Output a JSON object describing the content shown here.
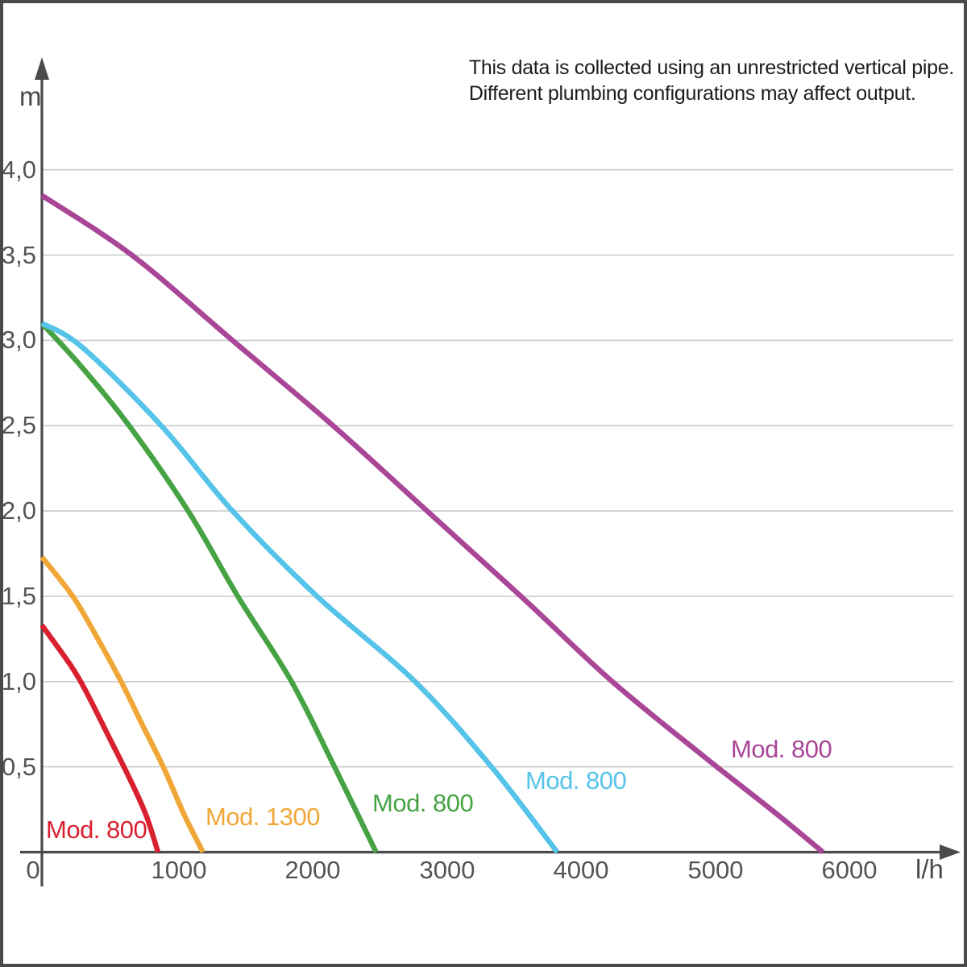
{
  "chart_data": {
    "type": "line",
    "title": "",
    "xlabel": "l/h",
    "ylabel": "m",
    "xlim": [
      0,
      6800
    ],
    "ylim": [
      0,
      4.6
    ],
    "grid": "horizontal",
    "legend": "inline-labels",
    "annotations": [
      "This data is collected using an unrestricted vertical pipe.",
      "Different plumbing configurations may affect output."
    ],
    "x_ticks": [
      {
        "value": 0,
        "label": "0"
      },
      {
        "value": 1000,
        "label": "1000"
      },
      {
        "value": 2000,
        "label": "2000"
      },
      {
        "value": 3000,
        "label": "3000"
      },
      {
        "value": 4000,
        "label": "4000"
      },
      {
        "value": 5000,
        "label": "5000"
      },
      {
        "value": 6000,
        "label": "6000"
      }
    ],
    "y_ticks": [
      {
        "value": 0.5,
        "label": "0,5"
      },
      {
        "value": 1.0,
        "label": "1,0"
      },
      {
        "value": 1.5,
        "label": "1,5"
      },
      {
        "value": 2.0,
        "label": "2,0"
      },
      {
        "value": 2.5,
        "label": "2,5"
      },
      {
        "value": 3.0,
        "label": "3,0"
      },
      {
        "value": 3.5,
        "label": "3,5"
      },
      {
        "value": 4.0,
        "label": "4,0"
      }
    ],
    "style": {
      "axis_color": "#4b4b4d",
      "grid_color": "#c9cacb",
      "tick_color": "#535456",
      "note_color": "#1d1d1f",
      "border_color": "#4a4a4c",
      "background": "#ffffff"
    },
    "series": [
      {
        "id": "mod800-red",
        "name": "Mod. 800",
        "color": "#d8202f",
        "max_head_m": 1.33,
        "max_flow_lh": 865,
        "label_xy": [
          57,
          1012
        ],
        "points": [
          [
            0,
            1.33
          ],
          [
            210,
            1.1
          ],
          [
            330,
            0.94
          ],
          [
            490,
            0.69
          ],
          [
            630,
            0.47
          ],
          [
            770,
            0.23
          ],
          [
            865,
            0
          ]
        ]
      },
      {
        "id": "mod1300-orange",
        "name": "Mod. 1300",
        "color": "#f0a737",
        "max_head_m": 1.73,
        "max_flow_lh": 1200,
        "label_xy": [
          255,
          996
        ],
        "points": [
          [
            0,
            1.73
          ],
          [
            230,
            1.5
          ],
          [
            410,
            1.26
          ],
          [
            590,
            1.0
          ],
          [
            740,
            0.76
          ],
          [
            910,
            0.49
          ],
          [
            1060,
            0.22
          ],
          [
            1200,
            0
          ]
        ]
      },
      {
        "id": "mod800-green",
        "name": "Mod. 800",
        "color": "#46a344",
        "max_head_m": 3.1,
        "max_flow_lh": 2490,
        "label_xy": [
          462,
          979
        ],
        "points": [
          [
            0,
            3.1
          ],
          [
            290,
            2.85
          ],
          [
            650,
            2.5
          ],
          [
            1090,
            2.0
          ],
          [
            1460,
            1.5
          ],
          [
            1860,
            1.0
          ],
          [
            2180,
            0.5
          ],
          [
            2490,
            0
          ]
        ]
      },
      {
        "id": "mod800-cyan",
        "name": "Mod. 800",
        "color": "#56c3e9",
        "max_head_m": 3.1,
        "max_flow_lh": 3840,
        "label_xy": [
          652,
          951
        ],
        "points": [
          [
            0,
            3.1
          ],
          [
            300,
            2.96
          ],
          [
            890,
            2.5
          ],
          [
            1420,
            2.0
          ],
          [
            2050,
            1.5
          ],
          [
            2780,
            1.0
          ],
          [
            3350,
            0.5
          ],
          [
            3840,
            0
          ]
        ]
      },
      {
        "id": "mod800-magenta",
        "name": "Mod. 800",
        "color": "#a94697",
        "max_head_m": 3.85,
        "max_flow_lh": 5820,
        "label_xy": [
          907,
          912
        ],
        "points": [
          [
            0,
            3.85
          ],
          [
            670,
            3.5
          ],
          [
            1420,
            3.0
          ],
          [
            2170,
            2.5
          ],
          [
            2870,
            2.0
          ],
          [
            3570,
            1.5
          ],
          [
            4250,
            1.0
          ],
          [
            4950,
            0.55
          ],
          [
            5450,
            0.24
          ],
          [
            5820,
            0
          ]
        ]
      }
    ]
  }
}
